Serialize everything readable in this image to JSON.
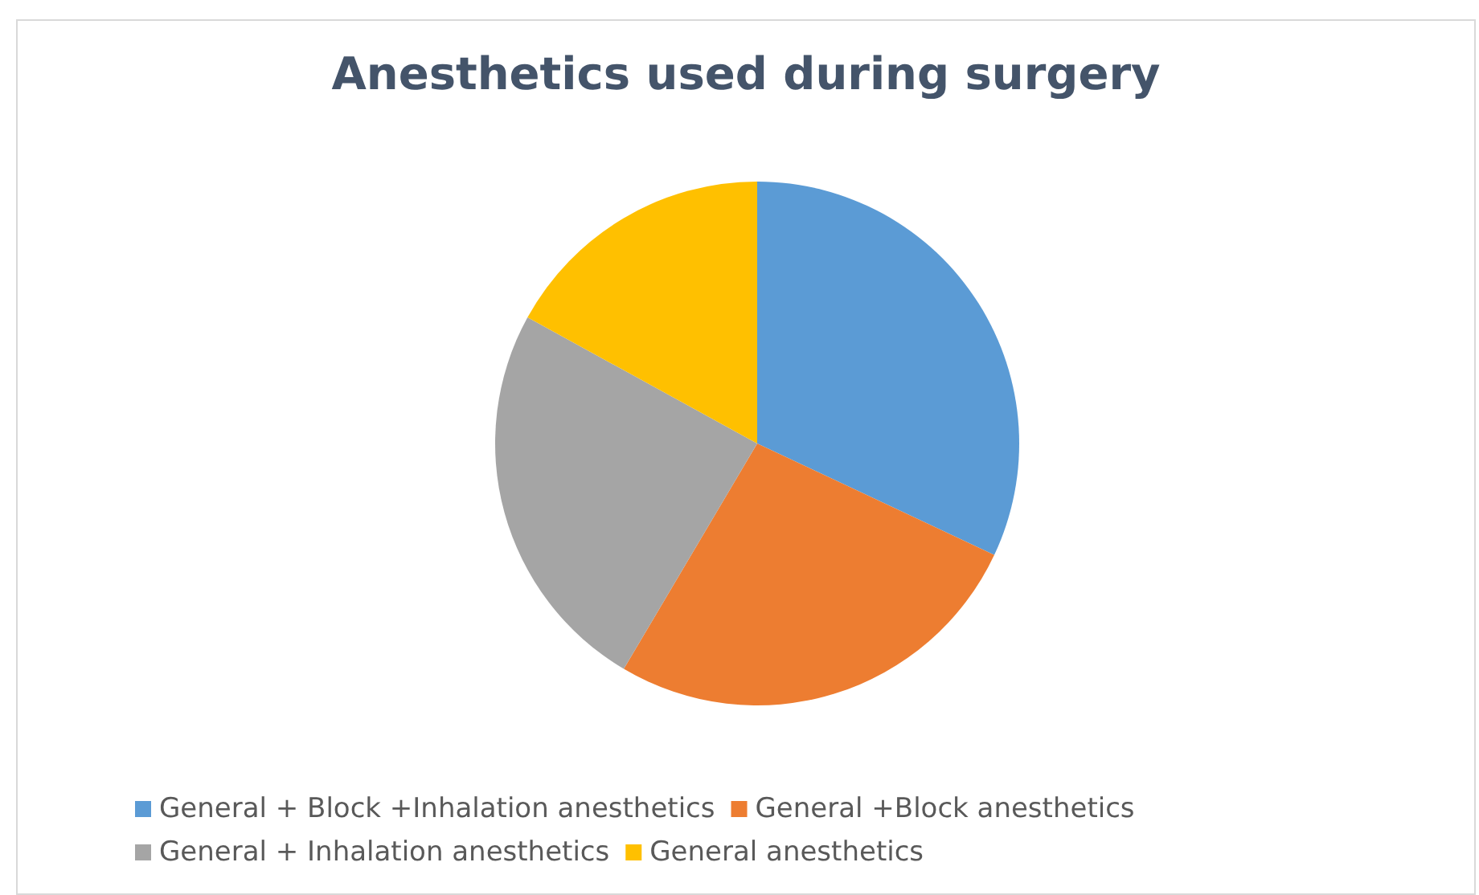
{
  "chart_data": {
    "type": "pie",
    "title": "Anesthetics used during surgery",
    "categories": [
      "General + Block +Inhalation anesthetics",
      "General +Block anesthetics",
      "General + Inhalation anesthetics",
      "General anesthetics"
    ],
    "values": [
      32,
      26.5,
      24.5,
      17
    ],
    "colors": [
      "#5b9bd5",
      "#ed7d31",
      "#a5a5a5",
      "#ffc000"
    ],
    "legend": "bottom"
  }
}
